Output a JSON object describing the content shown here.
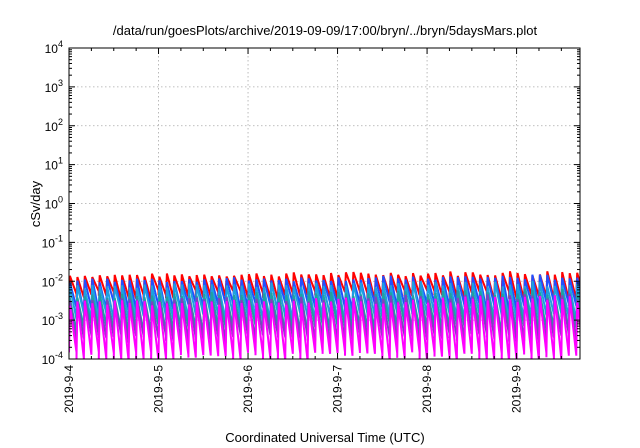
{
  "chart_data": {
    "type": "line",
    "title": "/data/run/goesPlots/archive/2019-09-09/17:00/bryn/../bryn/5daysMars.plot",
    "xlabel": "Coordinated Universal Time (UTC)",
    "ylabel": "cSv/day",
    "yscale": "log",
    "ylim": [
      0.0001,
      10000
    ],
    "y_tick_labels": [
      {
        "base": "10",
        "exp": "-4"
      },
      {
        "base": "10",
        "exp": "-3"
      },
      {
        "base": "10",
        "exp": "-2"
      },
      {
        "base": "10",
        "exp": "-1"
      },
      {
        "base": "10",
        "exp": "0"
      },
      {
        "base": "10",
        "exp": "1"
      },
      {
        "base": "10",
        "exp": "2"
      },
      {
        "base": "10",
        "exp": "3"
      },
      {
        "base": "10",
        "exp": "4"
      }
    ],
    "x_range_days": [
      "2019-09-04",
      "2019-09-09 17:00"
    ],
    "x_tick_labels": [
      "2019-9-4",
      "2019-9-5",
      "2019-9-6",
      "2019-9-7",
      "2019-9-8",
      "2019-9-9"
    ],
    "grid": true,
    "orbit_period_hours": 2,
    "series": [
      {
        "color": "#ff0000",
        "peak": [
          0.011,
          0.018
        ],
        "trough": 0.0045
      },
      {
        "color": "#2050ff",
        "peak": [
          0.008,
          0.014
        ],
        "trough": 0.0022
      },
      {
        "color": "#1ea0e0",
        "peak": [
          0.0055,
          0.01
        ],
        "trough": 0.0012
      },
      {
        "color": "#20a0a0",
        "peak": [
          0.003,
          0.006
        ],
        "trough": 0.0006
      },
      {
        "color": "#8040c0",
        "peak": [
          0.0022,
          0.0045
        ],
        "trough": 0.00035
      },
      {
        "color": "#ff00ff",
        "peak": [
          0.0018,
          0.004
        ],
        "trough": 0.00012
      }
    ]
  }
}
